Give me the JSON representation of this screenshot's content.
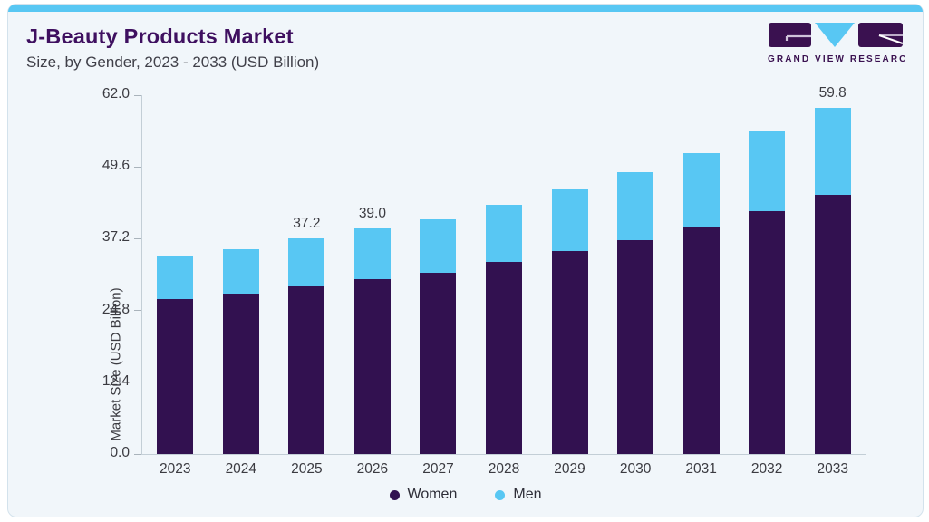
{
  "header": {
    "title": "J-Beauty Products Market",
    "subtitle": "Size, by Gender, 2023 - 2033 (USD Billion)"
  },
  "brand": {
    "name": "GRAND VIEW RESEARCH",
    "logo_parts": [
      "g-block",
      "v-triangle",
      "r-block"
    ]
  },
  "colors": {
    "women": "#321150",
    "men": "#58c7f3",
    "accent_bar": "#58c7f3",
    "title": "#3f1060",
    "card_background": "#f1f6fa",
    "axis_line": "#c3ced6",
    "label_text": "#3b3b41"
  },
  "chart_data": {
    "type": "bar",
    "stacked": true,
    "title": "J-Beauty Products Market Size, by Gender, 2023 - 2033 (USD Billion)",
    "categories": [
      "2023",
      "2024",
      "2025",
      "2026",
      "2027",
      "2028",
      "2029",
      "2030",
      "2031",
      "2032",
      "2033"
    ],
    "series": [
      {
        "name": "Women",
        "color": "#321150",
        "values": [
          26.7,
          27.7,
          28.9,
          30.2,
          31.3,
          33.2,
          35.1,
          37.0,
          39.3,
          41.9,
          44.7
        ]
      },
      {
        "name": "Men",
        "color": "#58c7f3",
        "values": [
          7.4,
          7.7,
          8.3,
          8.8,
          9.3,
          9.9,
          10.7,
          11.7,
          12.7,
          13.7,
          15.1
        ]
      }
    ],
    "totals": [
      34.1,
      35.4,
      37.2,
      39.0,
      40.6,
      43.1,
      45.8,
      48.7,
      52.0,
      55.6,
      59.8
    ],
    "bar_labels": [
      {
        "index": 2,
        "text": "37.2"
      },
      {
        "index": 3,
        "text": "39.0"
      },
      {
        "index": 10,
        "text": "59.8"
      }
    ],
    "xlabel": "",
    "ylabel": "Market Size (USD Billion)",
    "yticks": [
      0,
      12.4,
      24.8,
      37.2,
      49.6,
      62
    ],
    "ytick_labels": [
      "0.0",
      "12.4",
      "24.8",
      "37.2",
      "49.6",
      "62.0"
    ],
    "ylim": [
      0,
      62
    ],
    "grid": false,
    "legend_position": "bottom-center",
    "legend": [
      "Women",
      "Men"
    ]
  }
}
